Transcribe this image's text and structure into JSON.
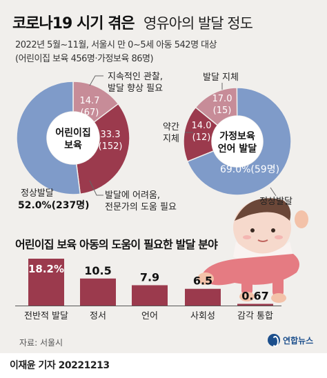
{
  "header": {
    "title_bold": "코로나19 시기 겪은",
    "title_regular": "영유아의 발달 정도",
    "subtitle_line1": "2022년 5월~11월, 서울시 만 0~5세 아동 542명 대상",
    "subtitle_line2": "(어린이집 보육 456명·가정보육 86명)"
  },
  "chart_data": [
    {
      "type": "pie",
      "center_label": [
        "어린이집",
        "보육"
      ],
      "slices": [
        {
          "label": [
            "지속적인 관찰,",
            "발달 향상 필요"
          ],
          "percent": 14.7,
          "count": 67,
          "color": "#c78c98"
        },
        {
          "label": [
            "발달에 어려움,",
            "전문가의 도움 필요"
          ],
          "percent": 33.3,
          "count": 152,
          "color": "#9b3a4d"
        },
        {
          "label": [
            "정상발달"
          ],
          "percent": 52.0,
          "count": 237,
          "color": "#7f9bc9"
        }
      ],
      "value_texts": [
        [
          "14.7",
          "(67)"
        ],
        [
          "33.3",
          "(152)"
        ],
        [
          "52.0%(237명)"
        ]
      ]
    },
    {
      "type": "pie",
      "center_label": [
        "가정보육",
        "언어 발달"
      ],
      "slices": [
        {
          "label": [
            "발달 지체"
          ],
          "percent": 17.0,
          "count": 15,
          "color": "#9b3a4d"
        },
        {
          "label": [
            "약간",
            "지체"
          ],
          "percent": 14.0,
          "count": 12,
          "color": "#c78c98"
        },
        {
          "label": [
            "정상발달"
          ],
          "percent": 69.0,
          "count": 59,
          "color": "#7f9bc9"
        }
      ],
      "value_texts": [
        [
          "17.0",
          "(15)"
        ],
        [
          "14.0",
          "(12)"
        ],
        [
          "69.0%(59명)"
        ]
      ]
    },
    {
      "type": "bar",
      "title": "어린이집 보육 아동의 도움이 필요한 발달 분야",
      "categories": [
        "전반적 발달",
        "정서",
        "언어",
        "사회성",
        "감각 통합"
      ],
      "values": [
        18.2,
        10.5,
        7.9,
        6.5,
        0.67
      ],
      "value_labels": [
        "18.2%",
        "10.5",
        "7.9",
        "6.5",
        "0.67"
      ],
      "color": "#9b3a4d"
    }
  ],
  "footer": {
    "source": "자료: 서울시",
    "logo_text": "연합뉴스",
    "byline": "이재윤 기자  20221213"
  },
  "colors": {
    "background": "#f1efec",
    "accent": "#9b3a4d",
    "light_accent": "#c78c98",
    "blue": "#7f9bc9"
  }
}
